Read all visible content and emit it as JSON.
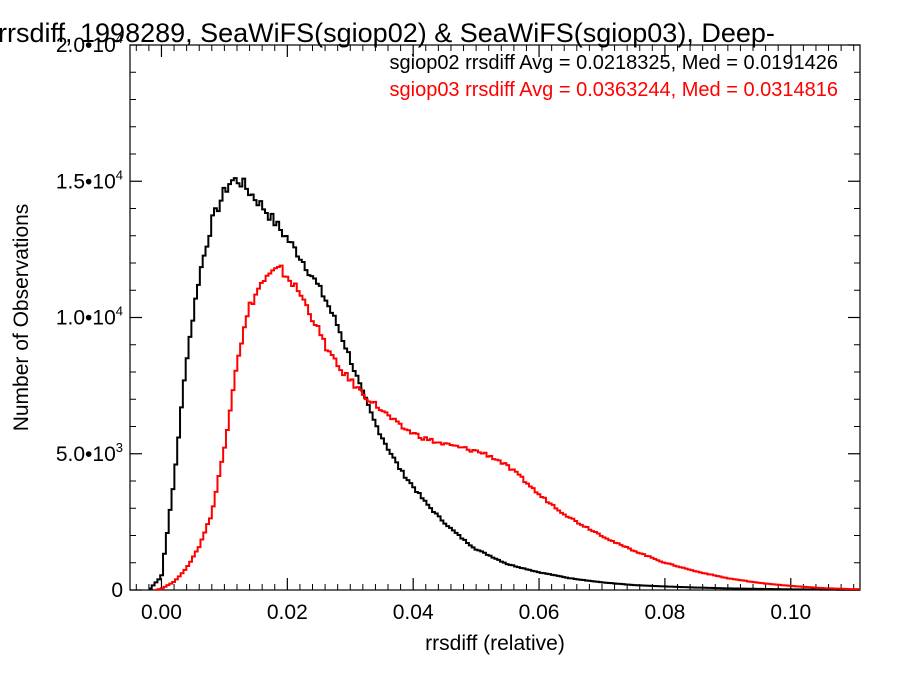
{
  "chart_data": {
    "type": "line",
    "title": "rrsdiff, 1998289, SeaWiFS(sgiop02) & SeaWiFS(sgiop03), Deep-",
    "xlabel": "rrsdiff (relative)",
    "ylabel": "Number of Observations",
    "xlim": [
      -0.005,
      0.111
    ],
    "ylim": [
      0,
      20000
    ],
    "grid": false,
    "x_ticks": [
      {
        "value": 0.0,
        "label": "0.00"
      },
      {
        "value": 0.02,
        "label": "0.02"
      },
      {
        "value": 0.04,
        "label": "0.04"
      },
      {
        "value": 0.06,
        "label": "0.06"
      },
      {
        "value": 0.08,
        "label": "0.08"
      },
      {
        "value": 0.1,
        "label": "0.10"
      }
    ],
    "y_ticks": [
      {
        "value": 0,
        "mantissa": "0",
        "exponent": ""
      },
      {
        "value": 5000,
        "mantissa": "5.0•10",
        "exponent": "3"
      },
      {
        "value": 10000,
        "mantissa": "1.0•10",
        "exponent": "4"
      },
      {
        "value": 15000,
        "mantissa": "1.5•10",
        "exponent": "4"
      },
      {
        "value": 20000,
        "mantissa": "2.0•10",
        "exponent": "4"
      }
    ],
    "legend_placement": "top-right",
    "series": [
      {
        "name": "sgiop02 rrsdiff Avg = 0.0218325, Med = 0.0191426",
        "color": "#000000",
        "x": [
          -0.002,
          0.0,
          0.002,
          0.004,
          0.006,
          0.008,
          0.01,
          0.011,
          0.012,
          0.013,
          0.014,
          0.016,
          0.018,
          0.02,
          0.022,
          0.024,
          0.026,
          0.028,
          0.03,
          0.032,
          0.034,
          0.036,
          0.038,
          0.04,
          0.042,
          0.044,
          0.046,
          0.048,
          0.05,
          0.055,
          0.06,
          0.065,
          0.07,
          0.075,
          0.08,
          0.085,
          0.09,
          0.095,
          0.1,
          0.105,
          0.11
        ],
        "y": [
          0,
          500,
          4000,
          8500,
          11500,
          13500,
          14600,
          15000,
          15050,
          14900,
          14600,
          14100,
          13500,
          12900,
          12250,
          11500,
          10700,
          9700,
          8500,
          7200,
          6100,
          5200,
          4400,
          3800,
          3200,
          2700,
          2250,
          1850,
          1500,
          950,
          650,
          430,
          280,
          180,
          130,
          90,
          60,
          40,
          25,
          15,
          8
        ]
      },
      {
        "name": "sgiop03 rrsdiff Avg = 0.0363244, Med = 0.0314816",
        "color": "#ff0000",
        "x": [
          -0.001,
          0.0,
          0.002,
          0.004,
          0.006,
          0.008,
          0.01,
          0.012,
          0.014,
          0.016,
          0.018,
          0.019,
          0.02,
          0.022,
          0.024,
          0.026,
          0.028,
          0.03,
          0.032,
          0.034,
          0.036,
          0.038,
          0.04,
          0.042,
          0.044,
          0.046,
          0.048,
          0.05,
          0.052,
          0.054,
          0.056,
          0.058,
          0.06,
          0.062,
          0.064,
          0.066,
          0.068,
          0.07,
          0.072,
          0.075,
          0.08,
          0.085,
          0.09,
          0.095,
          0.1,
          0.105,
          0.11
        ],
        "y": [
          0,
          50,
          300,
          800,
          1600,
          2800,
          5200,
          8400,
          10400,
          11300,
          11700,
          11750,
          11500,
          10900,
          10000,
          9000,
          8200,
          7700,
          7200,
          6800,
          6400,
          6000,
          5750,
          5550,
          5400,
          5300,
          5200,
          5100,
          4950,
          4700,
          4350,
          3950,
          3500,
          3150,
          2800,
          2500,
          2250,
          2000,
          1750,
          1450,
          1000,
          680,
          430,
          260,
          150,
          70,
          30
        ]
      }
    ]
  }
}
